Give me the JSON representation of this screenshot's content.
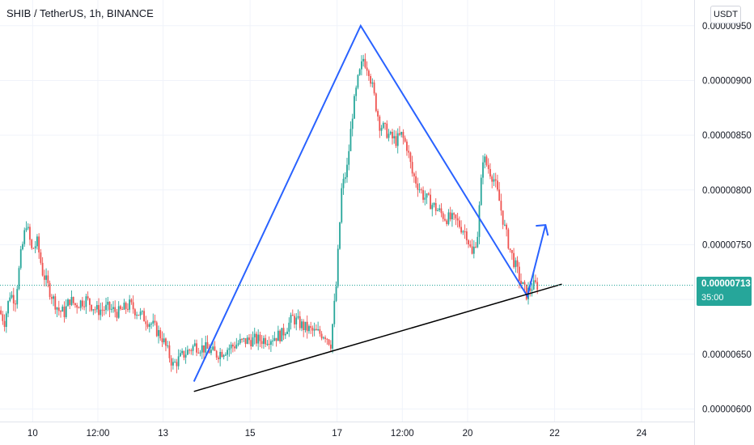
{
  "header": {
    "title": "SHIB / TetherUS, 1h, BINANCE",
    "currency_button": "USDT"
  },
  "last_price": {
    "value": "0.00000713",
    "countdown": "35:00",
    "price": 7.13e-06,
    "color": "#26a69a"
  },
  "colors": {
    "up": "#26a69a",
    "down": "#ef5350",
    "pattern": "#2962ff",
    "trendline": "#000000",
    "grid": "#f0f3fa"
  },
  "chart_data": {
    "type": "candlestick",
    "title": "SHIB / TetherUS, 1h, BINANCE",
    "ylim": [
      5.885e-06,
      9.735e-06
    ],
    "xlim": [
      "2021-10-09T06:00",
      "2021-10-25T05:00"
    ],
    "y_ticks": [
      "0.00000600",
      "0.00000650",
      "0.00000700",
      "0.00000750",
      "0.00000800",
      "0.00000850",
      "0.00000900",
      "0.00000950"
    ],
    "x_ticks": [
      {
        "label": "10",
        "t": "2021-10-10T00:00"
      },
      {
        "label": "12:00",
        "t": "2021-10-11T12:00"
      },
      {
        "label": "13",
        "t": "2021-10-13T00:00"
      },
      {
        "label": "15",
        "t": "2021-10-15T00:00"
      },
      {
        "label": "17",
        "t": "2021-10-17T00:00"
      },
      {
        "label": "12:00",
        "t": "2021-10-18T12:00"
      },
      {
        "label": "20",
        "t": "2021-10-20T00:00"
      },
      {
        "label": "22",
        "t": "2021-10-22T00:00"
      },
      {
        "label": "24",
        "t": "2021-10-24T00:00"
      }
    ],
    "price_path": [
      [
        "2021-10-09T06:00",
        6.9e-06
      ],
      [
        "2021-10-09T09:00",
        6.8e-06
      ],
      [
        "2021-10-09T12:00",
        7.05e-06
      ],
      [
        "2021-10-09T15:00",
        7e-06
      ],
      [
        "2021-10-09T18:00",
        7.4e-06
      ],
      [
        "2021-10-09T21:00",
        7.7e-06
      ],
      [
        "2021-10-10T00:00",
        7.45e-06
      ],
      [
        "2021-10-10T03:00",
        7.52e-06
      ],
      [
        "2021-10-10T06:00",
        7.25e-06
      ],
      [
        "2021-10-10T09:00",
        7.12e-06
      ],
      [
        "2021-10-10T12:00",
        7e-06
      ],
      [
        "2021-10-10T15:00",
        6.9e-06
      ],
      [
        "2021-10-10T18:00",
        6.88e-06
      ],
      [
        "2021-10-10T21:00",
        7e-06
      ],
      [
        "2021-10-11T00:00",
        6.95e-06
      ],
      [
        "2021-10-11T06:00",
        7e-06
      ],
      [
        "2021-10-11T12:00",
        6.9e-06
      ],
      [
        "2021-10-11T18:00",
        6.92e-06
      ],
      [
        "2021-10-12T00:00",
        6.88e-06
      ],
      [
        "2021-10-12T06:00",
        6.95e-06
      ],
      [
        "2021-10-12T12:00",
        6.86e-06
      ],
      [
        "2021-10-12T18:00",
        6.78e-06
      ],
      [
        "2021-10-13T00:00",
        6.65e-06
      ],
      [
        "2021-10-13T06:00",
        6.4e-06
      ],
      [
        "2021-10-13T12:00",
        6.5e-06
      ],
      [
        "2021-10-13T18:00",
        6.58e-06
      ],
      [
        "2021-10-14T00:00",
        6.55e-06
      ],
      [
        "2021-10-14T06:00",
        6.5e-06
      ],
      [
        "2021-10-14T12:00",
        6.55e-06
      ],
      [
        "2021-10-14T18:00",
        6.6e-06
      ],
      [
        "2021-10-15T00:00",
        6.63e-06
      ],
      [
        "2021-10-15T06:00",
        6.63e-06
      ],
      [
        "2021-10-15T12:00",
        6.65e-06
      ],
      [
        "2021-10-15T18:00",
        6.68e-06
      ],
      [
        "2021-10-16T00:00",
        6.83e-06
      ],
      [
        "2021-10-16T06:00",
        6.75e-06
      ],
      [
        "2021-10-16T12:00",
        6.7e-06
      ],
      [
        "2021-10-16T18:00",
        6.68e-06
      ],
      [
        "2021-10-16T21:00",
        6.6e-06
      ],
      [
        "2021-10-17T00:00",
        7.12e-06
      ],
      [
        "2021-10-17T03:00",
        8e-06
      ],
      [
        "2021-10-17T06:00",
        8.2e-06
      ],
      [
        "2021-10-17T09:00",
        8.7e-06
      ],
      [
        "2021-10-17T12:00",
        9e-06
      ],
      [
        "2021-10-17T15:00",
        9.2e-06
      ],
      [
        "2021-10-17T18:00",
        9.1e-06
      ],
      [
        "2021-10-17T21:00",
        8.85e-06
      ],
      [
        "2021-10-18T00:00",
        8.6e-06
      ],
      [
        "2021-10-18T03:00",
        8.55e-06
      ],
      [
        "2021-10-18T06:00",
        8.48e-06
      ],
      [
        "2021-10-18T09:00",
        8.45e-06
      ],
      [
        "2021-10-18T12:00",
        8.5e-06
      ],
      [
        "2021-10-18T15:00",
        8.4e-06
      ],
      [
        "2021-10-18T18:00",
        8.15e-06
      ],
      [
        "2021-10-19T00:00",
        7.95e-06
      ],
      [
        "2021-10-19T06:00",
        7.85e-06
      ],
      [
        "2021-10-19T12:00",
        7.75e-06
      ],
      [
        "2021-10-19T18:00",
        7.72e-06
      ],
      [
        "2021-10-20T00:00",
        7.6e-06
      ],
      [
        "2021-10-20T03:00",
        7.4e-06
      ],
      [
        "2021-10-20T06:00",
        7.6e-06
      ],
      [
        "2021-10-20T09:00",
        8.3e-06
      ],
      [
        "2021-10-20T12:00",
        8.2e-06
      ],
      [
        "2021-10-20T15:00",
        8.1e-06
      ],
      [
        "2021-10-20T18:00",
        7.9e-06
      ],
      [
        "2021-10-20T21:00",
        7.65e-06
      ],
      [
        "2021-10-21T00:00",
        7.45e-06
      ],
      [
        "2021-10-21T03:00",
        7.3e-06
      ],
      [
        "2021-10-21T06:00",
        7.15e-06
      ],
      [
        "2021-10-21T09:00",
        7.05e-06
      ],
      [
        "2021-10-21T12:00",
        7.12e-06
      ],
      [
        "2021-10-21T14:00",
        7.13e-06
      ]
    ],
    "drawings": {
      "zigzag": [
        [
          "2021-10-13T17:00",
          6.25e-06
        ],
        [
          "2021-10-17T13:00",
          9.5e-06
        ],
        [
          "2021-10-21T09:00",
          7.03e-06
        ],
        [
          "2021-10-21T19:00",
          7.68e-06
        ]
      ],
      "trendline": [
        [
          "2021-10-13T17:00",
          6.16e-06
        ],
        [
          "2021-10-22T04:00",
          7.14e-06
        ]
      ]
    }
  }
}
